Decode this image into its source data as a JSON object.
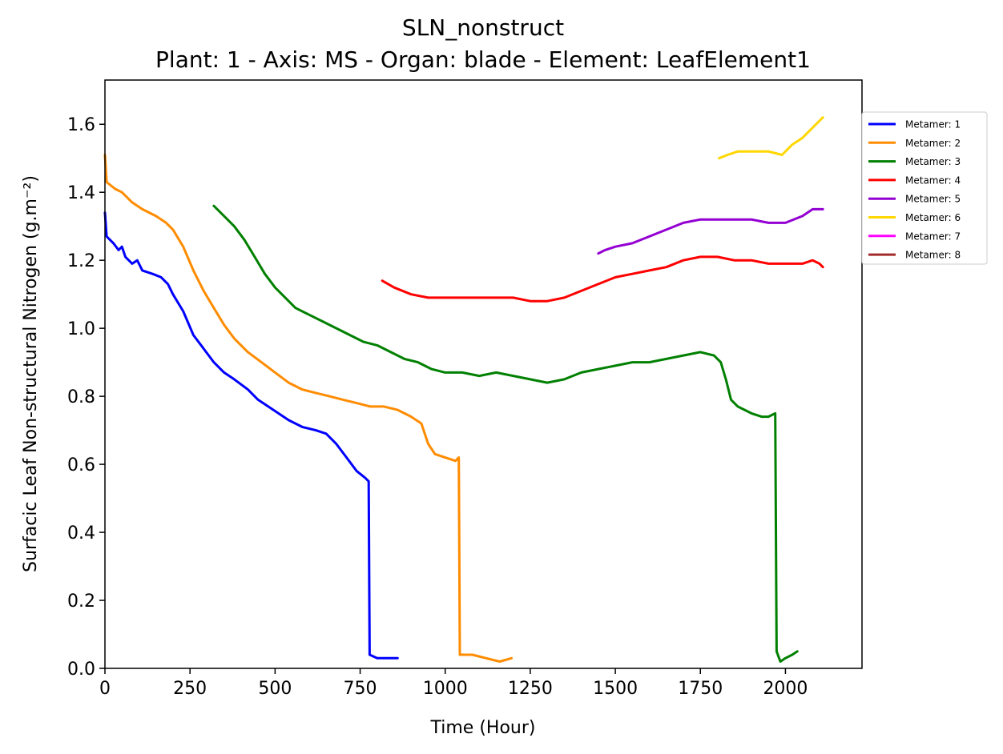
{
  "chart_data": {
    "type": "line",
    "title": "SLN_nonstruct",
    "subtitle": "Plant: 1 - Axis: MS - Organ: blade - Element: LeafElement1",
    "xlabel": "Time (Hour)",
    "ylabel": "Surfacic Leaf Non-structural Nitrogen (g.m⁻²)",
    "xlim": [
      0,
      2225
    ],
    "ylim": [
      0,
      1.73
    ],
    "xticks": [
      0,
      250,
      500,
      750,
      1000,
      1250,
      1500,
      1750,
      2000
    ],
    "xtick_labels": [
      "0",
      "250",
      "500",
      "750",
      "1000",
      "1250",
      "1500",
      "1750",
      "2000"
    ],
    "yticks": [
      0.0,
      0.2,
      0.4,
      0.6,
      0.8,
      1.0,
      1.2,
      1.4,
      1.6
    ],
    "ytick_labels": [
      "0.0",
      "0.2",
      "0.4",
      "0.6",
      "0.8",
      "1.0",
      "1.2",
      "1.4",
      "1.6"
    ],
    "grid": false,
    "legend_position": "right, outside plot",
    "series": [
      {
        "name": "Metamer: 1",
        "color": "#0000ff",
        "points": [
          [
            0,
            1.34
          ],
          [
            5,
            1.27
          ],
          [
            25,
            1.25
          ],
          [
            40,
            1.23
          ],
          [
            50,
            1.24
          ],
          [
            60,
            1.21
          ],
          [
            80,
            1.19
          ],
          [
            95,
            1.2
          ],
          [
            110,
            1.17
          ],
          [
            140,
            1.16
          ],
          [
            165,
            1.15
          ],
          [
            185,
            1.13
          ],
          [
            200,
            1.1
          ],
          [
            230,
            1.05
          ],
          [
            260,
            0.98
          ],
          [
            290,
            0.94
          ],
          [
            320,
            0.9
          ],
          [
            350,
            0.87
          ],
          [
            380,
            0.85
          ],
          [
            420,
            0.82
          ],
          [
            450,
            0.79
          ],
          [
            480,
            0.77
          ],
          [
            510,
            0.75
          ],
          [
            540,
            0.73
          ],
          [
            580,
            0.71
          ],
          [
            620,
            0.7
          ],
          [
            650,
            0.69
          ],
          [
            680,
            0.66
          ],
          [
            710,
            0.62
          ],
          [
            740,
            0.58
          ],
          [
            765,
            0.56
          ],
          [
            775,
            0.55
          ],
          [
            778,
            0.04
          ],
          [
            800,
            0.03
          ],
          [
            830,
            0.03
          ],
          [
            860,
            0.03
          ]
        ]
      },
      {
        "name": "Metamer: 2",
        "color": "#ff8c00",
        "points": [
          [
            0,
            1.51
          ],
          [
            5,
            1.43
          ],
          [
            30,
            1.41
          ],
          [
            50,
            1.4
          ],
          [
            80,
            1.37
          ],
          [
            110,
            1.35
          ],
          [
            150,
            1.33
          ],
          [
            180,
            1.31
          ],
          [
            200,
            1.29
          ],
          [
            230,
            1.24
          ],
          [
            260,
            1.17
          ],
          [
            290,
            1.11
          ],
          [
            320,
            1.06
          ],
          [
            350,
            1.01
          ],
          [
            380,
            0.97
          ],
          [
            420,
            0.93
          ],
          [
            460,
            0.9
          ],
          [
            500,
            0.87
          ],
          [
            540,
            0.84
          ],
          [
            580,
            0.82
          ],
          [
            620,
            0.81
          ],
          [
            660,
            0.8
          ],
          [
            700,
            0.79
          ],
          [
            740,
            0.78
          ],
          [
            780,
            0.77
          ],
          [
            820,
            0.77
          ],
          [
            860,
            0.76
          ],
          [
            900,
            0.74
          ],
          [
            930,
            0.72
          ],
          [
            950,
            0.66
          ],
          [
            970,
            0.63
          ],
          [
            1000,
            0.62
          ],
          [
            1030,
            0.61
          ],
          [
            1040,
            0.62
          ],
          [
            1043,
            0.04
          ],
          [
            1080,
            0.04
          ],
          [
            1120,
            0.03
          ],
          [
            1160,
            0.02
          ],
          [
            1195,
            0.03
          ]
        ]
      },
      {
        "name": "Metamer: 3",
        "color": "#008000",
        "points": [
          [
            320,
            1.36
          ],
          [
            350,
            1.33
          ],
          [
            380,
            1.3
          ],
          [
            410,
            1.26
          ],
          [
            440,
            1.21
          ],
          [
            470,
            1.16
          ],
          [
            500,
            1.12
          ],
          [
            530,
            1.09
          ],
          [
            560,
            1.06
          ],
          [
            600,
            1.04
          ],
          [
            640,
            1.02
          ],
          [
            680,
            1.0
          ],
          [
            720,
            0.98
          ],
          [
            760,
            0.96
          ],
          [
            800,
            0.95
          ],
          [
            840,
            0.93
          ],
          [
            880,
            0.91
          ],
          [
            920,
            0.9
          ],
          [
            960,
            0.88
          ],
          [
            1000,
            0.87
          ],
          [
            1050,
            0.87
          ],
          [
            1100,
            0.86
          ],
          [
            1150,
            0.87
          ],
          [
            1200,
            0.86
          ],
          [
            1250,
            0.85
          ],
          [
            1300,
            0.84
          ],
          [
            1350,
            0.85
          ],
          [
            1400,
            0.87
          ],
          [
            1450,
            0.88
          ],
          [
            1500,
            0.89
          ],
          [
            1550,
            0.9
          ],
          [
            1600,
            0.9
          ],
          [
            1650,
            0.91
          ],
          [
            1700,
            0.92
          ],
          [
            1750,
            0.93
          ],
          [
            1790,
            0.92
          ],
          [
            1810,
            0.9
          ],
          [
            1825,
            0.85
          ],
          [
            1840,
            0.79
          ],
          [
            1860,
            0.77
          ],
          [
            1880,
            0.76
          ],
          [
            1900,
            0.75
          ],
          [
            1930,
            0.74
          ],
          [
            1950,
            0.74
          ],
          [
            1970,
            0.75
          ],
          [
            1974,
            0.05
          ],
          [
            1985,
            0.02
          ],
          [
            2000,
            0.03
          ],
          [
            2020,
            0.04
          ],
          [
            2035,
            0.05
          ]
        ]
      },
      {
        "name": "Metamer: 4",
        "color": "#ff0000",
        "points": [
          [
            815,
            1.14
          ],
          [
            850,
            1.12
          ],
          [
            900,
            1.1
          ],
          [
            950,
            1.09
          ],
          [
            1000,
            1.09
          ],
          [
            1050,
            1.09
          ],
          [
            1100,
            1.09
          ],
          [
            1150,
            1.09
          ],
          [
            1200,
            1.09
          ],
          [
            1250,
            1.08
          ],
          [
            1300,
            1.08
          ],
          [
            1350,
            1.09
          ],
          [
            1400,
            1.11
          ],
          [
            1450,
            1.13
          ],
          [
            1500,
            1.15
          ],
          [
            1550,
            1.16
          ],
          [
            1600,
            1.17
          ],
          [
            1650,
            1.18
          ],
          [
            1700,
            1.2
          ],
          [
            1750,
            1.21
          ],
          [
            1800,
            1.21
          ],
          [
            1850,
            1.2
          ],
          [
            1900,
            1.2
          ],
          [
            1950,
            1.19
          ],
          [
            2000,
            1.19
          ],
          [
            2050,
            1.19
          ],
          [
            2080,
            1.2
          ],
          [
            2100,
            1.19
          ],
          [
            2110,
            1.18
          ]
        ]
      },
      {
        "name": "Metamer: 5",
        "color": "#9400d3",
        "points": [
          [
            1450,
            1.22
          ],
          [
            1470,
            1.23
          ],
          [
            1500,
            1.24
          ],
          [
            1550,
            1.25
          ],
          [
            1600,
            1.27
          ],
          [
            1650,
            1.29
          ],
          [
            1700,
            1.31
          ],
          [
            1750,
            1.32
          ],
          [
            1800,
            1.32
          ],
          [
            1850,
            1.32
          ],
          [
            1900,
            1.32
          ],
          [
            1950,
            1.31
          ],
          [
            2000,
            1.31
          ],
          [
            2050,
            1.33
          ],
          [
            2080,
            1.35
          ],
          [
            2110,
            1.35
          ]
        ]
      },
      {
        "name": "Metamer: 6",
        "color": "#ffd700",
        "points": [
          [
            1805,
            1.5
          ],
          [
            1830,
            1.51
          ],
          [
            1860,
            1.52
          ],
          [
            1900,
            1.52
          ],
          [
            1950,
            1.52
          ],
          [
            1990,
            1.51
          ],
          [
            2020,
            1.54
          ],
          [
            2050,
            1.56
          ],
          [
            2080,
            1.59
          ],
          [
            2100,
            1.61
          ],
          [
            2110,
            1.62
          ]
        ]
      },
      {
        "name": "Metamer: 7",
        "color": "#ff00ff",
        "points": []
      },
      {
        "name": "Metamer: 8",
        "color": "#a52a2a",
        "points": []
      }
    ]
  }
}
